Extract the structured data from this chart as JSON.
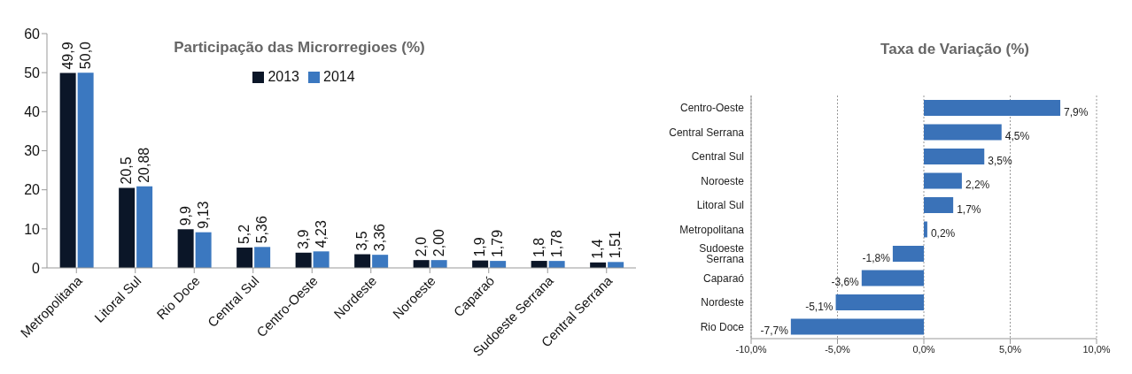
{
  "chart_data": [
    {
      "type": "bar",
      "title": "Participação das Microrregioes (%)",
      "categories": [
        "Metropolitana",
        "Litoral Sul",
        "Rio Doce",
        "Central Sul",
        "Centro-Oeste",
        "Nordeste",
        "Noroeste",
        "Caparaó",
        "Sudoeste Serrana",
        "Central Serrana"
      ],
      "series": [
        {
          "name": "2013",
          "color": "#0b1628",
          "values": [
            49.9,
            20.5,
            9.9,
            5.2,
            3.9,
            3.5,
            2.0,
            1.9,
            1.8,
            1.4
          ],
          "value_labels": [
            "49,9",
            "20,5",
            "9,9",
            "5,2",
            "3,9",
            "3,5",
            "2,0",
            "1,9",
            "1,8",
            "1,4"
          ]
        },
        {
          "name": "2014",
          "color": "#3b78c0",
          "values": [
            50.0,
            20.88,
            9.13,
            5.36,
            4.23,
            3.36,
            2.0,
            1.79,
            1.78,
            1.51
          ],
          "value_labels": [
            "50,0",
            "20,88",
            "9,13",
            "5,36",
            "4,23",
            "3,36",
            "2,00",
            "1,79",
            "1,78",
            "1,51"
          ]
        }
      ],
      "ylim": [
        0,
        60
      ],
      "yticks": [
        0,
        10,
        20,
        30,
        40,
        50,
        60
      ],
      "grid": false,
      "legend": "top"
    },
    {
      "type": "bar",
      "orientation": "horizontal",
      "title": "Taxa de Variação (%)",
      "categories": [
        "Centro-Oeste",
        "Central Serrana",
        "Central Sul",
        "Noroeste",
        "Litoral Sul",
        "Metropolitana",
        "Sudoeste Serrana",
        "Caparaó",
        "Nordeste",
        "Rio Doce"
      ],
      "series": [
        {
          "color": "#3a72b8",
          "values": [
            7.9,
            4.5,
            3.5,
            2.2,
            1.7,
            0.2,
            -1.8,
            -3.6,
            -5.1,
            -7.7
          ],
          "value_labels": [
            "7,9%",
            "4,5%",
            "3,5%",
            "2,2%",
            "1,7%",
            "0,2%",
            "-1,8%",
            "-3,6%",
            "-5,1%",
            "-7,7%"
          ]
        }
      ],
      "xlim": [
        -10,
        10
      ],
      "xticks": [
        {
          "value": -10,
          "label": "-10,0%"
        },
        {
          "value": -5,
          "label": "-5,0%"
        },
        {
          "value": 0,
          "label": "0,0%"
        },
        {
          "value": 5,
          "label": "5,0%"
        },
        {
          "value": 10,
          "label": "10,0%"
        }
      ],
      "grid": "x"
    }
  ]
}
